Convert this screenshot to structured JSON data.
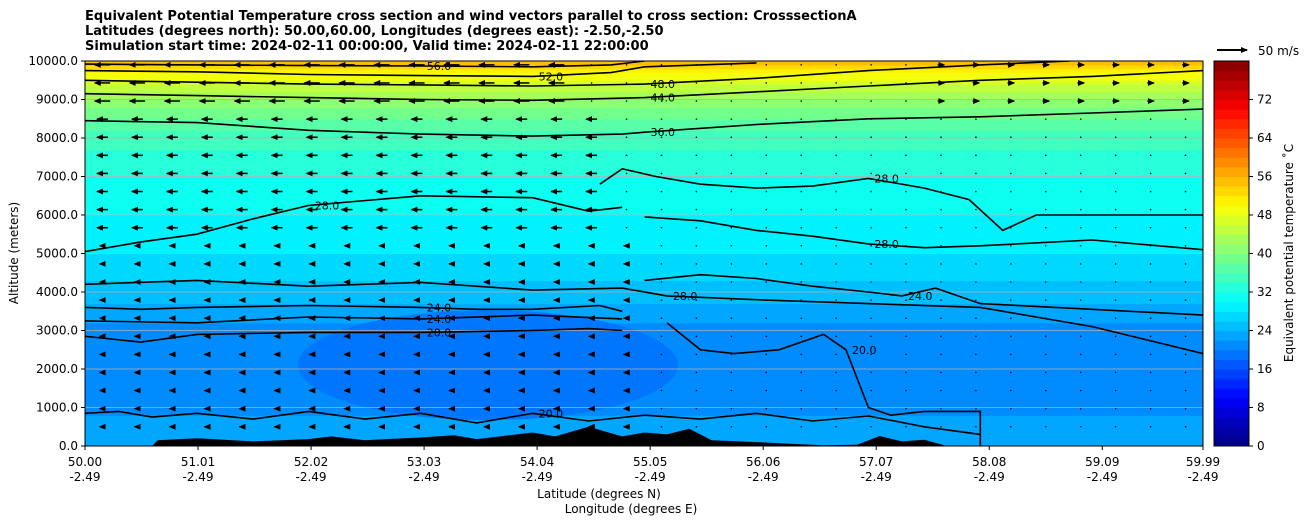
{
  "chart_data": {
    "type": "contour",
    "title_lines": [
      "Equivalent Potential Temperature cross section and wind vectors parallel to cross section: CrosssectionA",
      "Latitudes (degrees north): 50.00,60.00, Longitudes (degrees east): -2.50,-2.50",
      "Simulation start time: 2024-02-11 00:00:00, Valid time: 2024-02-11 22:00:00"
    ],
    "xlabel_lat": "Latitude (degrees N)",
    "xlabel_lon": "Longitude (degrees E)",
    "ylabel": "Altitude (meters)",
    "xlim": [
      50.0,
      59.99
    ],
    "ylim": [
      0,
      10000
    ],
    "x_ticks": [
      {
        "lat": "50.00",
        "lon": "-2.49",
        "value": 50.0
      },
      {
        "lat": "51.01",
        "lon": "-2.49",
        "value": 51.01
      },
      {
        "lat": "52.02",
        "lon": "-2.49",
        "value": 52.02
      },
      {
        "lat": "53.03",
        "lon": "-2.49",
        "value": 53.03
      },
      {
        "lat": "54.04",
        "lon": "-2.49",
        "value": 54.04
      },
      {
        "lat": "55.05",
        "lon": "-2.49",
        "value": 55.05
      },
      {
        "lat": "56.06",
        "lon": "-2.49",
        "value": 56.06
      },
      {
        "lat": "57.07",
        "lon": "-2.49",
        "value": 57.07
      },
      {
        "lat": "58.08",
        "lon": "-2.49",
        "value": 58.08
      },
      {
        "lat": "59.09",
        "lon": "-2.49",
        "value": 59.09
      },
      {
        "lat": "59.99",
        "lon": "-2.49",
        "value": 59.99
      }
    ],
    "y_ticks": [
      {
        "label": "0.0",
        "value": 0
      },
      {
        "label": "1000.0",
        "value": 1000
      },
      {
        "label": "2000.0",
        "value": 2000
      },
      {
        "label": "3000.0",
        "value": 3000
      },
      {
        "label": "4000.0",
        "value": 4000
      },
      {
        "label": "5000.0",
        "value": 5000
      },
      {
        "label": "6000.0",
        "value": 6000
      },
      {
        "label": "7000.0",
        "value": 7000
      },
      {
        "label": "8000.0",
        "value": 8000
      },
      {
        "label": "9000.0",
        "value": 9000
      },
      {
        "label": "10000.0",
        "value": 10000
      }
    ],
    "grid": "horizontal",
    "colorbar": {
      "label": "Equivalent potential temperature ˚C",
      "vmin": 0,
      "vmax": 80,
      "step": 2,
      "ticks": [
        "0",
        "8",
        "16",
        "24",
        "32",
        "40",
        "48",
        "56",
        "64",
        "72"
      ]
    },
    "wind_key": {
      "label": "50 m/s",
      "speed": 50
    },
    "contour_levels_labeled": [
      "20.0",
      "24.0",
      "28.0",
      "36.0",
      "44.0",
      "48.0",
      "52.0",
      "56.0"
    ],
    "theta_e_profile": [
      {
        "z": 0,
        "t": 24
      },
      {
        "z": 500,
        "t": 23
      },
      {
        "z": 1000,
        "t": 21
      },
      {
        "z": 2000,
        "t": 20
      },
      {
        "z": 3000,
        "t": 21
      },
      {
        "z": 4000,
        "t": 25
      },
      {
        "z": 5000,
        "t": 28
      },
      {
        "z": 6000,
        "t": 30
      },
      {
        "z": 7000,
        "t": 32
      },
      {
        "z": 8000,
        "t": 35
      },
      {
        "z": 8800,
        "t": 40
      },
      {
        "z": 9300,
        "t": 45
      },
      {
        "z": 9700,
        "t": 50
      },
      {
        "z": 10000,
        "t": 57
      }
    ],
    "contours": [
      {
        "level": "20.0",
        "points": [
          [
            50.0,
            850
          ],
          [
            50.3,
            900
          ],
          [
            50.6,
            750
          ],
          [
            51.0,
            850
          ],
          [
            51.5,
            700
          ],
          [
            52.0,
            900
          ],
          [
            52.5,
            700
          ],
          [
            53.0,
            850
          ],
          [
            53.5,
            600
          ],
          [
            54.0,
            850
          ],
          [
            54.5,
            650
          ],
          [
            55.0,
            800
          ],
          [
            55.5,
            700
          ],
          [
            56.0,
            850
          ],
          [
            56.5,
            650
          ],
          [
            57.0,
            780
          ],
          [
            57.5,
            500
          ],
          [
            58.0,
            300
          ]
        ]
      },
      {
        "level": "20.0",
        "points": [
          [
            50.0,
            2850
          ],
          [
            50.5,
            2700
          ],
          [
            51.0,
            2900
          ],
          [
            52.0,
            2950
          ],
          [
            53.0,
            2950
          ],
          [
            54.0,
            3000
          ],
          [
            54.5,
            3050
          ],
          [
            54.8,
            3000
          ]
        ]
      },
      {
        "level": "20.0",
        "points": [
          [
            55.2,
            3200
          ],
          [
            55.5,
            2500
          ],
          [
            55.8,
            2400
          ],
          [
            56.2,
            2500
          ],
          [
            56.6,
            2900
          ],
          [
            56.8,
            2500
          ],
          [
            57.0,
            1000
          ],
          [
            57.2,
            800
          ],
          [
            57.5,
            900
          ],
          [
            58.0,
            900
          ],
          [
            58.0,
            0
          ]
        ]
      },
      {
        "level": "24.0",
        "points": [
          [
            50.0,
            3600
          ],
          [
            50.5,
            3550
          ],
          [
            51.0,
            3600
          ],
          [
            52.0,
            3650
          ],
          [
            53.0,
            3600
          ],
          [
            53.5,
            3550
          ],
          [
            54.0,
            3550
          ],
          [
            54.6,
            3650
          ],
          [
            54.8,
            3500
          ]
        ]
      },
      {
        "level": "24.0",
        "points": [
          [
            55.0,
            4300
          ],
          [
            55.5,
            4450
          ],
          [
            56.0,
            4350
          ],
          [
            56.5,
            4150
          ],
          [
            57.0,
            4000
          ],
          [
            57.3,
            3900
          ],
          [
            57.6,
            4100
          ],
          [
            58.0,
            3700
          ],
          [
            59.0,
            3550
          ],
          [
            59.99,
            3400
          ]
        ]
      },
      {
        "level": "24.0",
        "points": [
          [
            50.0,
            3250
          ],
          [
            51.0,
            3200
          ],
          [
            52.0,
            3350
          ],
          [
            53.0,
            3300
          ],
          [
            54.0,
            3400
          ],
          [
            54.8,
            3300
          ]
        ]
      },
      {
        "level": "28.0",
        "points": [
          [
            50.0,
            5050
          ],
          [
            50.5,
            5300
          ],
          [
            51.0,
            5500
          ],
          [
            51.5,
            5900
          ],
          [
            52.0,
            6250
          ],
          [
            53.0,
            6500
          ],
          [
            54.0,
            6450
          ],
          [
            54.5,
            6100
          ],
          [
            54.8,
            6200
          ]
        ]
      },
      {
        "level": "28.0",
        "points": [
          [
            55.0,
            5950
          ],
          [
            55.5,
            5850
          ],
          [
            56.0,
            5600
          ],
          [
            56.5,
            5450
          ],
          [
            57.0,
            5250
          ],
          [
            57.5,
            5150
          ],
          [
            58.0,
            5200
          ],
          [
            59.0,
            5350
          ],
          [
            59.99,
            5100
          ]
        ]
      },
      {
        "level": "28.0",
        "points": [
          [
            50.0,
            4200
          ],
          [
            51.0,
            4300
          ],
          [
            52.0,
            4150
          ],
          [
            53.0,
            4250
          ],
          [
            54.0,
            4050
          ],
          [
            54.8,
            4100
          ],
          [
            55.2,
            3900
          ],
          [
            56.0,
            3800
          ],
          [
            57.0,
            3700
          ],
          [
            58.0,
            3600
          ],
          [
            59.0,
            3100
          ],
          [
            59.99,
            2400
          ]
        ]
      },
      {
        "level": "28.0",
        "points": [
          [
            54.6,
            6800
          ],
          [
            54.8,
            7200
          ],
          [
            55.1,
            7000
          ],
          [
            55.5,
            6800
          ],
          [
            56.0,
            6700
          ],
          [
            56.5,
            6750
          ],
          [
            57.0,
            6950
          ],
          [
            57.5,
            6700
          ],
          [
            57.9,
            6400
          ],
          [
            58.2,
            5600
          ],
          [
            58.5,
            6000
          ],
          [
            59.0,
            6000
          ],
          [
            59.99,
            6000
          ]
        ]
      },
      {
        "level": "36.0",
        "points": [
          [
            50.0,
            8450
          ],
          [
            51.0,
            8400
          ],
          [
            52.0,
            8200
          ],
          [
            53.0,
            8100
          ],
          [
            54.0,
            8050
          ],
          [
            54.8,
            8100
          ],
          [
            55.0,
            8150
          ],
          [
            56.0,
            8350
          ],
          [
            57.0,
            8500
          ],
          [
            58.0,
            8550
          ],
          [
            59.0,
            8650
          ],
          [
            59.99,
            8750
          ]
        ]
      },
      {
        "level": "44.0",
        "points": [
          [
            50.0,
            9150
          ],
          [
            51.0,
            9100
          ],
          [
            52.0,
            9050
          ],
          [
            53.0,
            9000
          ],
          [
            54.0,
            8980
          ],
          [
            55.0,
            9050
          ],
          [
            56.0,
            9200
          ],
          [
            57.0,
            9350
          ],
          [
            58.0,
            9500
          ],
          [
            59.0,
            9600
          ],
          [
            59.99,
            9750
          ]
        ]
      },
      {
        "level": "48.0",
        "points": [
          [
            50.0,
            9500
          ],
          [
            51.0,
            9450
          ],
          [
            52.0,
            9400
          ],
          [
            53.0,
            9380
          ],
          [
            54.0,
            9350
          ],
          [
            55.0,
            9400
          ],
          [
            56.0,
            9550
          ],
          [
            57.0,
            9750
          ],
          [
            58.0,
            9900
          ],
          [
            58.8,
            10000
          ]
        ]
      },
      {
        "level": "52.0",
        "points": [
          [
            50.0,
            9750
          ],
          [
            51.0,
            9720
          ],
          [
            52.0,
            9650
          ],
          [
            53.0,
            9620
          ],
          [
            54.0,
            9600
          ],
          [
            54.7,
            9700
          ],
          [
            55.0,
            9850
          ],
          [
            55.5,
            9900
          ],
          [
            56.0,
            9950
          ]
        ]
      },
      {
        "level": "56.0",
        "points": [
          [
            50.0,
            9920
          ],
          [
            51.0,
            9900
          ],
          [
            52.0,
            9880
          ],
          [
            53.0,
            9870
          ],
          [
            54.0,
            9850
          ],
          [
            54.7,
            9900
          ],
          [
            55.0,
            10000
          ]
        ]
      }
    ],
    "terrain": [
      [
        50.0,
        0
      ],
      [
        50.6,
        0
      ],
      [
        50.65,
        150
      ],
      [
        51.0,
        200
      ],
      [
        51.5,
        120
      ],
      [
        52.0,
        180
      ],
      [
        52.2,
        250
      ],
      [
        52.5,
        150
      ],
      [
        53.0,
        220
      ],
      [
        53.3,
        280
      ],
      [
        53.5,
        180
      ],
      [
        54.0,
        350
      ],
      [
        54.2,
        250
      ],
      [
        54.5,
        500
      ],
      [
        54.8,
        250
      ],
      [
        55.0,
        350
      ],
      [
        55.2,
        300
      ],
      [
        55.4,
        450
      ],
      [
        55.6,
        150
      ],
      [
        56.0,
        100
      ],
      [
        56.3,
        60
      ],
      [
        56.6,
        20
      ],
      [
        56.9,
        30
      ],
      [
        57.1,
        260
      ],
      [
        57.3,
        120
      ],
      [
        57.5,
        160
      ],
      [
        57.7,
        0
      ],
      [
        59.99,
        0
      ]
    ]
  }
}
